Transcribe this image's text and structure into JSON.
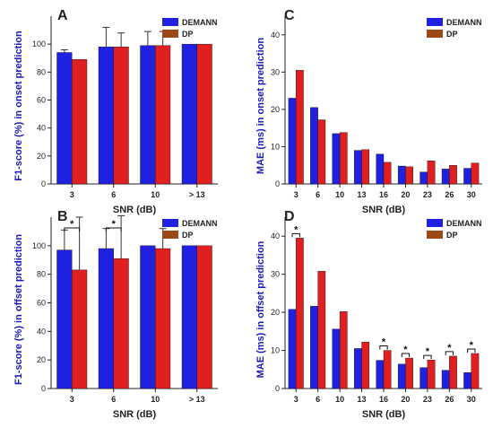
{
  "colors": {
    "demann": "#2020e0",
    "dp": "#e02020",
    "dp_legend": "#9b4a16"
  },
  "chart_data": [
    {
      "panel": "A",
      "type": "bar",
      "ylabel": "F1-score (%) in onset prediction",
      "xlabel": "SNR (dB)",
      "categories": [
        "3",
        "6",
        "10",
        "> 13"
      ],
      "ylim": [
        0,
        120
      ],
      "yticks": [
        0,
        20,
        40,
        60,
        80,
        100
      ],
      "legend": "top-right",
      "series": [
        {
          "name": "DEMANN",
          "values": [
            94,
            98,
            99,
            100
          ],
          "err": [
            2,
            14,
            10,
            0
          ]
        },
        {
          "name": "DP",
          "values": [
            89,
            98,
            99,
            100
          ],
          "err": [
            0,
            10,
            10,
            0
          ]
        }
      ],
      "significance": []
    },
    {
      "panel": "C",
      "type": "bar",
      "ylabel": "MAE (ms) in onset prediction",
      "xlabel": "SNR (dB)",
      "categories": [
        "3",
        "6",
        "10",
        "13",
        "16",
        "20",
        "23",
        "26",
        "30"
      ],
      "ylim": [
        0,
        45
      ],
      "yticks": [
        0,
        10,
        20,
        30,
        40
      ],
      "legend": "top-right",
      "series": [
        {
          "name": "DEMANN",
          "values": [
            23,
            20.5,
            13.5,
            9,
            8,
            4.8,
            3.2,
            4,
            4.2
          ]
        },
        {
          "name": "DP",
          "values": [
            30.5,
            17.2,
            13.8,
            9.2,
            5.8,
            4.6,
            6.2,
            5,
            5.6
          ]
        }
      ],
      "significance": []
    },
    {
      "panel": "B",
      "type": "bar",
      "ylabel": "F1-score (%) in offset prediction",
      "xlabel": "SNR (dB)",
      "categories": [
        "3",
        "6",
        "10",
        "> 13"
      ],
      "ylim": [
        0,
        120
      ],
      "yticks": [
        0,
        20,
        40,
        60,
        80,
        100
      ],
      "legend": "top-right",
      "series": [
        {
          "name": "DEMANN",
          "values": [
            97,
            98,
            100,
            100
          ],
          "err": [
            14,
            14,
            0,
            0
          ]
        },
        {
          "name": "DP",
          "values": [
            83,
            91,
            98,
            100
          ],
          "err": [
            37,
            30,
            14,
            0
          ]
        }
      ],
      "significance": [
        {
          "index": 0,
          "label": "*"
        },
        {
          "index": 1,
          "label": "*"
        }
      ]
    },
    {
      "panel": "D",
      "type": "bar",
      "ylabel": "MAE (ms) in offset prediction",
      "xlabel": "SNR (dB)",
      "categories": [
        "3",
        "6",
        "10",
        "13",
        "16",
        "20",
        "23",
        "26",
        "30"
      ],
      "ylim": [
        0,
        45
      ],
      "yticks": [
        0,
        10,
        20,
        30,
        40
      ],
      "legend": "top-right",
      "series": [
        {
          "name": "DEMANN",
          "values": [
            20.8,
            21.6,
            15.6,
            10.5,
            7.4,
            6.4,
            5.5,
            4.8,
            4.2
          ]
        },
        {
          "name": "DP",
          "values": [
            39.5,
            30.8,
            20.2,
            12.2,
            10,
            8,
            7.5,
            8.5,
            9.2
          ]
        }
      ],
      "significance": [
        {
          "index": 0,
          "label": "*"
        },
        {
          "index": 4,
          "label": "*"
        },
        {
          "index": 5,
          "label": "*"
        },
        {
          "index": 6,
          "label": "*"
        },
        {
          "index": 7,
          "label": "*"
        },
        {
          "index": 8,
          "label": "*"
        }
      ]
    }
  ]
}
